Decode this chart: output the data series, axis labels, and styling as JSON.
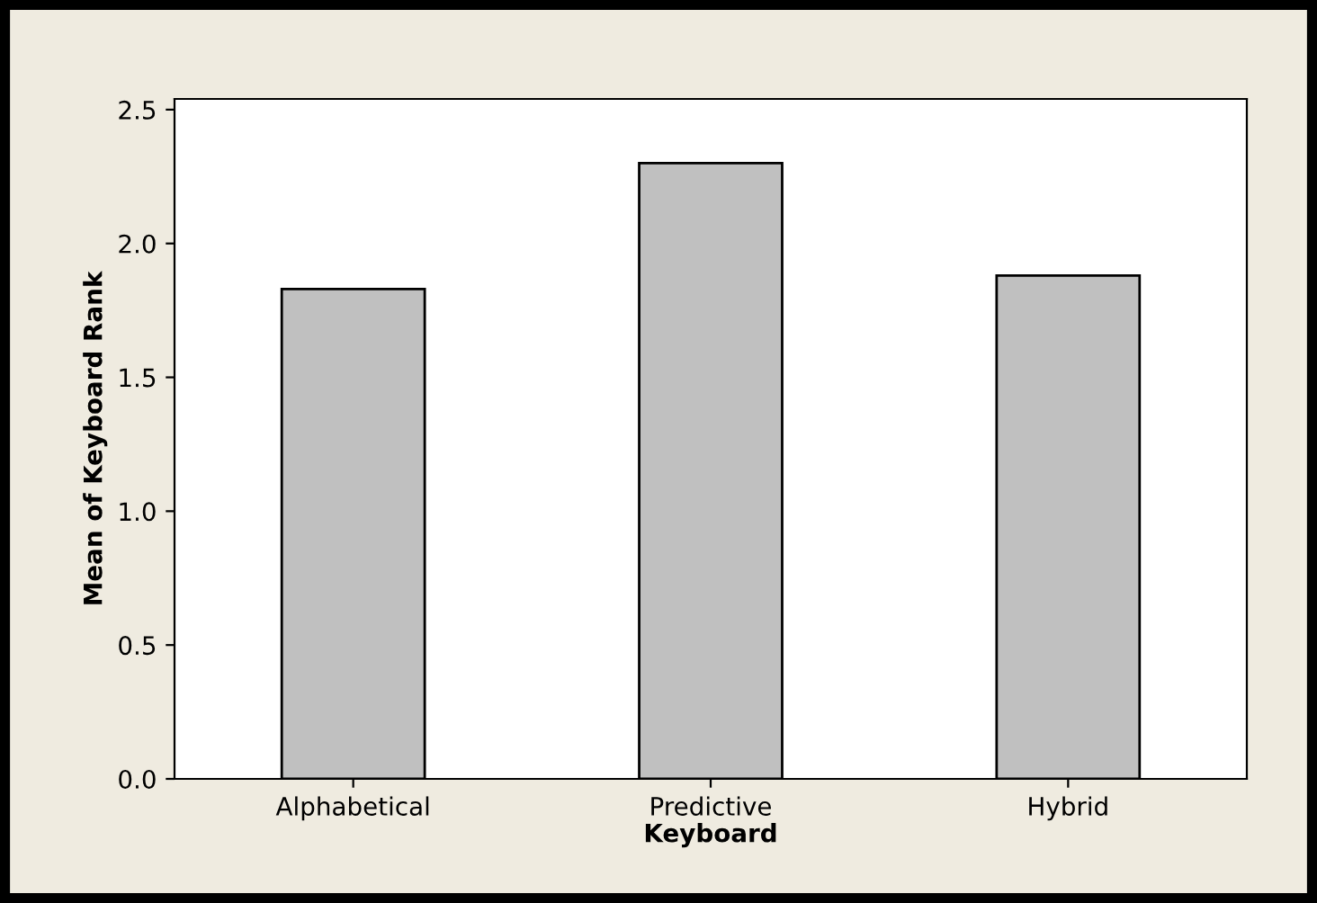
{
  "chart_data": {
    "type": "bar",
    "xlabel": "Keyboard",
    "ylabel": "Mean of Keyboard Rank",
    "categories": [
      "Alphabetical",
      "Predictive",
      "Hybrid"
    ],
    "values": [
      1.83,
      2.3,
      1.88
    ],
    "color": "#c0c0c0",
    "ylim": [
      0,
      2.54
    ],
    "yticks": [
      {
        "value": 0,
        "label": "0.0"
      },
      {
        "value": 0.5,
        "label": "0.5"
      },
      {
        "value": 1,
        "label": "1.0"
      },
      {
        "value": 1.5,
        "label": "1.5"
      },
      {
        "value": 2,
        "label": "2.0"
      },
      {
        "value": 2.5,
        "label": "2.5"
      }
    ],
    "grid": false,
    "legend": false
  }
}
